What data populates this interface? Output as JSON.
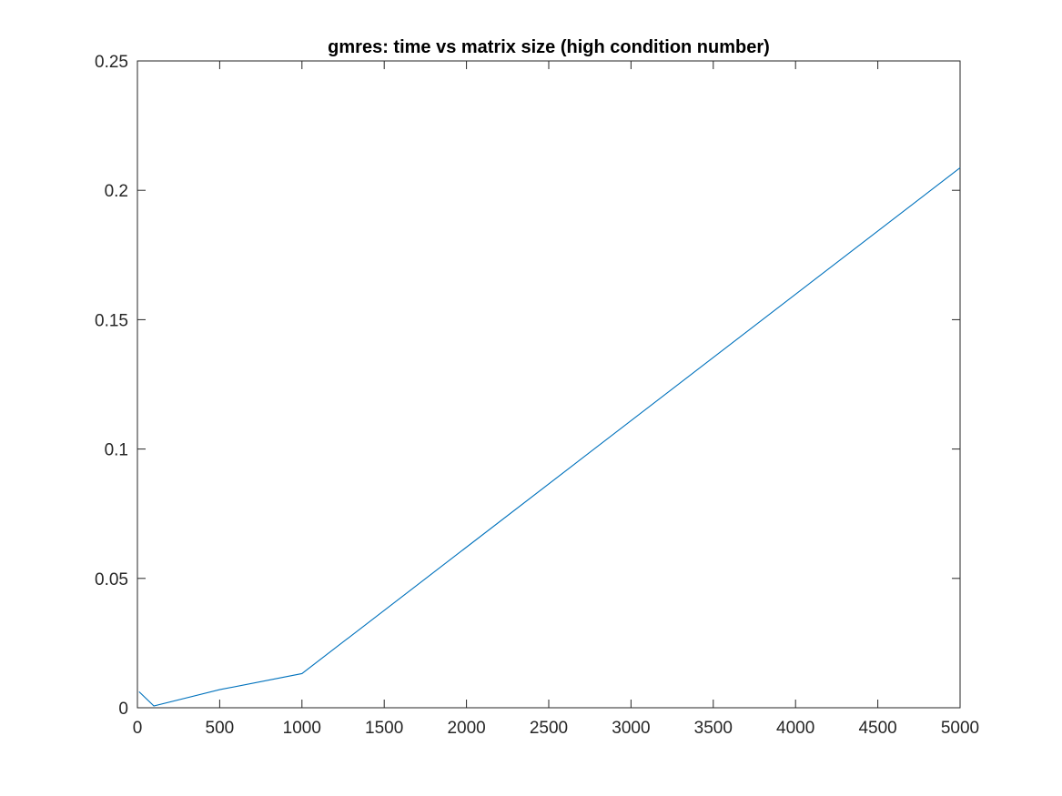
{
  "chart_data": {
    "type": "line",
    "title": "gmres: time vs matrix size (high condition number)",
    "xlabel": "",
    "ylabel": "",
    "xlim": [
      0,
      5000
    ],
    "ylim": [
      0,
      0.25
    ],
    "grid": false,
    "legend": "none",
    "x_ticks": [
      "0",
      "500",
      "1000",
      "1500",
      "2000",
      "2500",
      "3000",
      "3500",
      "4000",
      "4500",
      "5000"
    ],
    "y_ticks": [
      "0",
      "0.05",
      "0.1",
      "0.15",
      "0.2",
      "0.25"
    ],
    "series": [
      {
        "color": "#0072BD",
        "x": [
          10,
          100,
          500,
          1000,
          5000
        ],
        "y": [
          0.0062,
          0.0007,
          0.007,
          0.0132,
          0.2087
        ]
      }
    ]
  }
}
